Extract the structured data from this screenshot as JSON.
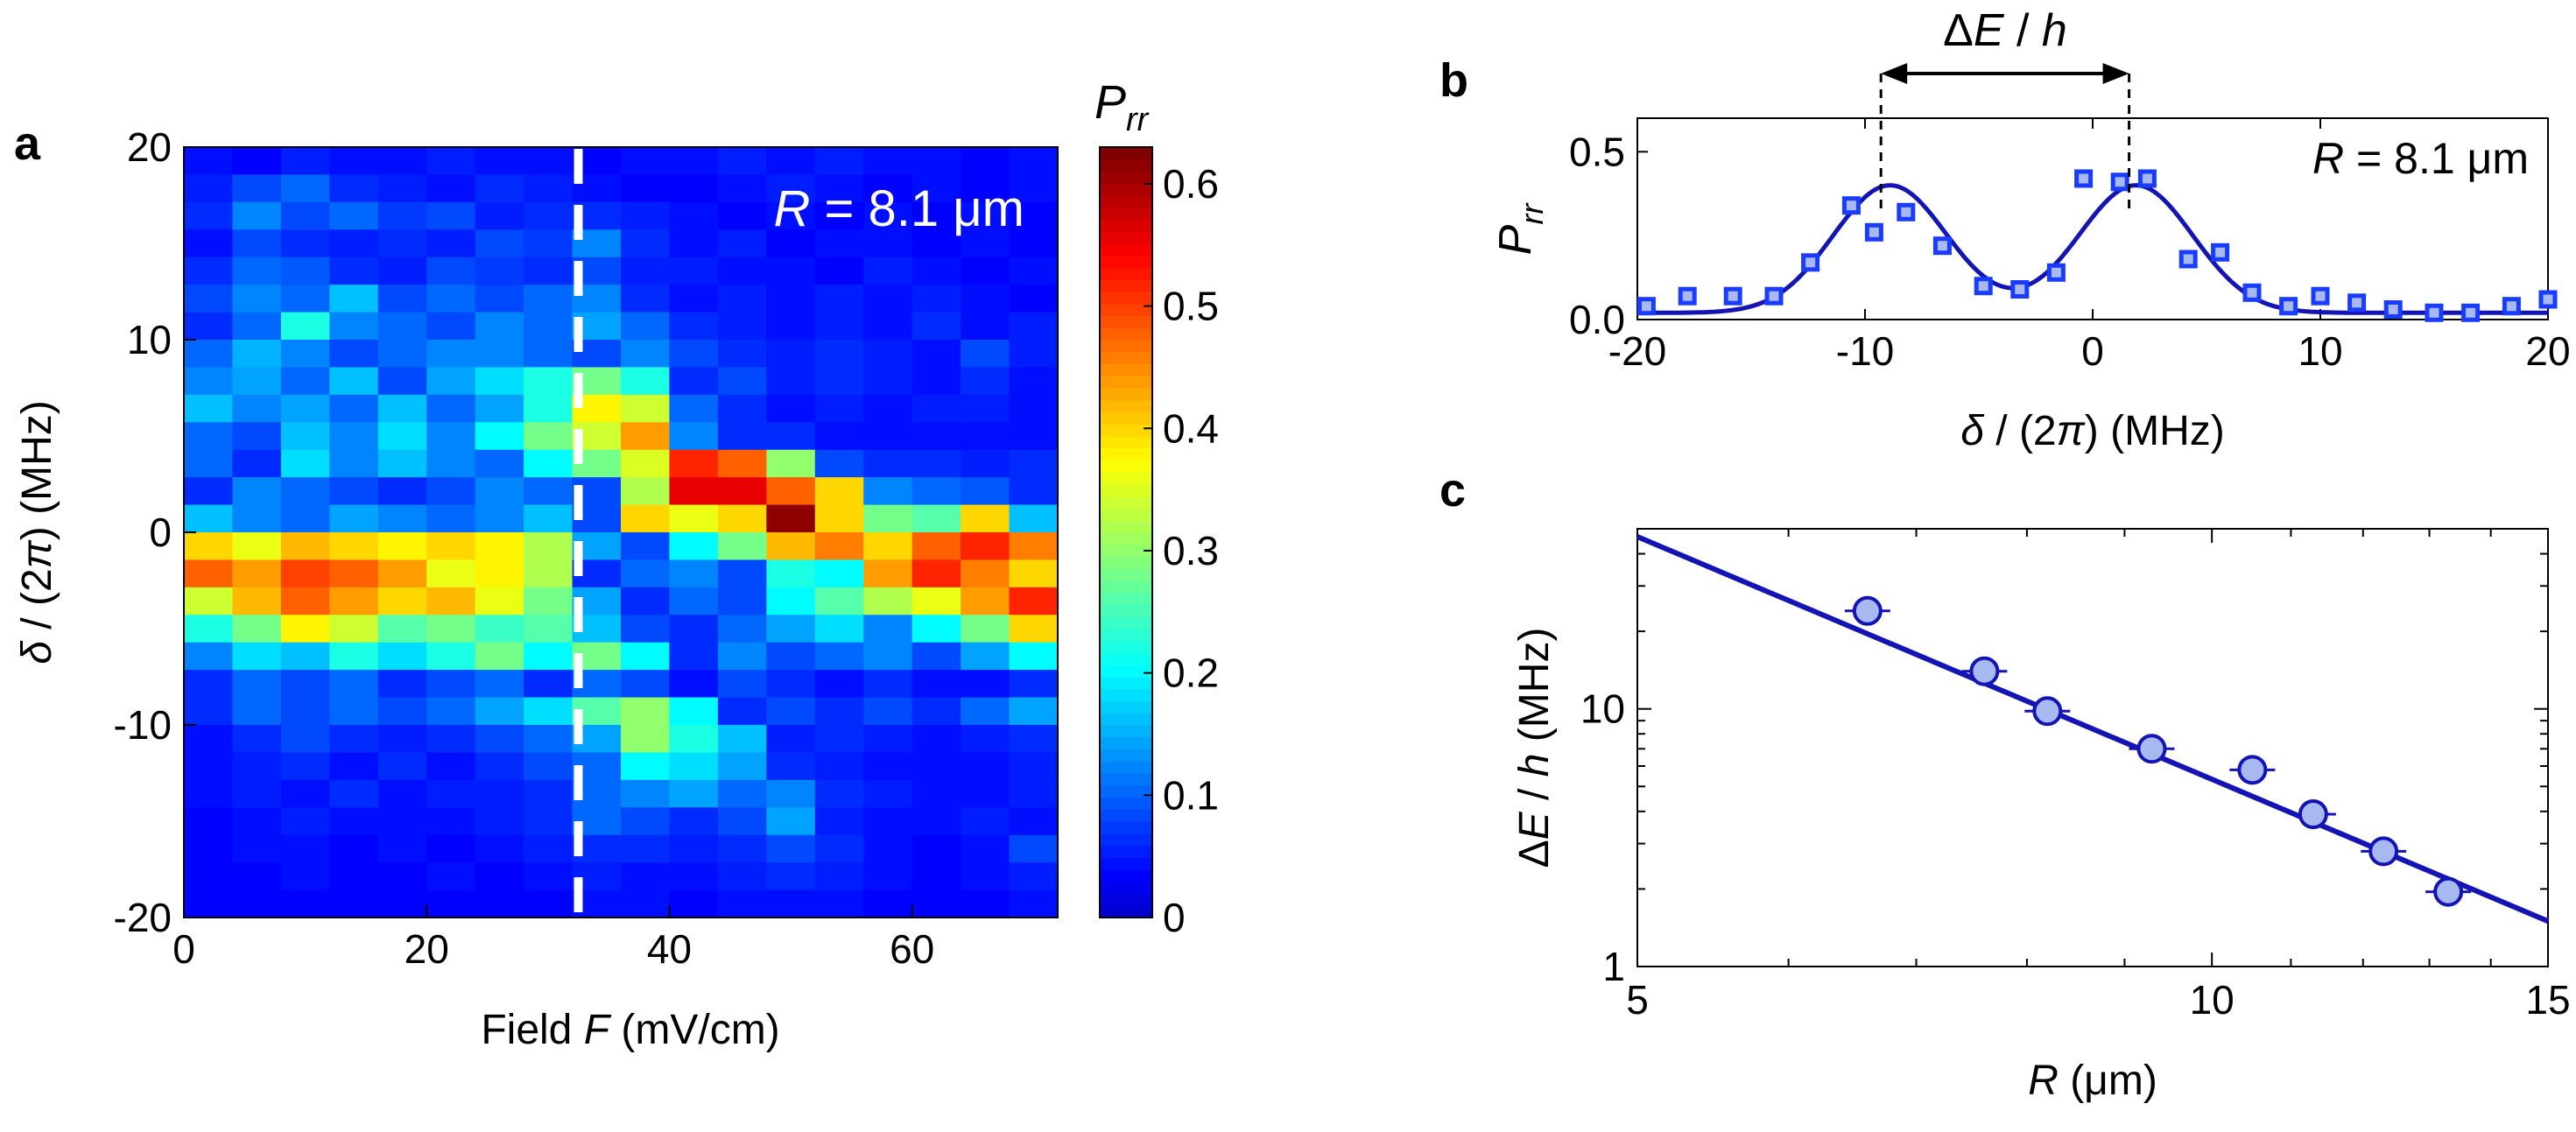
{
  "chart_data": [
    {
      "id": "a",
      "panel_label": "a",
      "type": "heatmap",
      "title": "",
      "xlabel": "Field F (mV/cm)",
      "xlabel_parts": [
        "Field ",
        "F",
        " (mV/cm)"
      ],
      "ylabel": "δ / (2π) (MHz)",
      "ylabel_parts": [
        "δ",
        " / (2",
        "π",
        ") (MHz)"
      ],
      "xlim": [
        0,
        72
      ],
      "ylim": [
        -20,
        20
      ],
      "x_ticks": [
        0,
        20,
        40,
        60
      ],
      "x_tick_labels": [
        "0",
        "20",
        "40",
        "60"
      ],
      "y_ticks": [
        -20,
        -10,
        0,
        10,
        20
      ],
      "y_tick_labels": [
        "-20",
        "-10",
        "0",
        "10",
        "20"
      ],
      "n_cols": 18,
      "n_rows": 20,
      "row_order": "top-to-bottom (row 0 = +20 MHz)",
      "values": [
        [
          0.04,
          0.03,
          0.05,
          0.04,
          0.04,
          0.05,
          0.04,
          0.04,
          0.03,
          0.04,
          0.04,
          0.05,
          0.04,
          0.05,
          0.04,
          0.04,
          0.03,
          0.04
        ],
        [
          0.05,
          0.08,
          0.1,
          0.06,
          0.05,
          0.04,
          0.06,
          0.05,
          0.04,
          0.03,
          0.03,
          0.04,
          0.05,
          0.04,
          0.03,
          0.04,
          0.03,
          0.04
        ],
        [
          0.06,
          0.12,
          0.08,
          0.1,
          0.07,
          0.08,
          0.05,
          0.06,
          0.06,
          0.05,
          0.04,
          0.03,
          0.04,
          0.03,
          0.04,
          0.03,
          0.04,
          0.03
        ],
        [
          0.04,
          0.08,
          0.06,
          0.05,
          0.06,
          0.05,
          0.08,
          0.07,
          0.12,
          0.06,
          0.04,
          0.05,
          0.03,
          0.04,
          0.04,
          0.03,
          0.04,
          0.03
        ],
        [
          0.06,
          0.1,
          0.09,
          0.06,
          0.05,
          0.08,
          0.07,
          0.06,
          0.08,
          0.05,
          0.05,
          0.04,
          0.04,
          0.03,
          0.05,
          0.04,
          0.03,
          0.04
        ],
        [
          0.08,
          0.12,
          0.1,
          0.16,
          0.08,
          0.1,
          0.08,
          0.1,
          0.12,
          0.06,
          0.04,
          0.05,
          0.04,
          0.05,
          0.04,
          0.05,
          0.04,
          0.03
        ],
        [
          0.06,
          0.1,
          0.22,
          0.12,
          0.1,
          0.08,
          0.12,
          0.1,
          0.14,
          0.1,
          0.06,
          0.05,
          0.04,
          0.05,
          0.04,
          0.06,
          0.04,
          0.05
        ],
        [
          0.1,
          0.15,
          0.12,
          0.08,
          0.1,
          0.12,
          0.12,
          0.1,
          0.08,
          0.12,
          0.08,
          0.06,
          0.05,
          0.06,
          0.05,
          0.04,
          0.08,
          0.05
        ],
        [
          0.12,
          0.14,
          0.1,
          0.16,
          0.08,
          0.14,
          0.18,
          0.22,
          0.28,
          0.22,
          0.06,
          0.08,
          0.05,
          0.06,
          0.05,
          0.04,
          0.06,
          0.04
        ],
        [
          0.16,
          0.12,
          0.14,
          0.1,
          0.16,
          0.1,
          0.14,
          0.22,
          0.38,
          0.34,
          0.1,
          0.06,
          0.04,
          0.05,
          0.04,
          0.05,
          0.05,
          0.04
        ],
        [
          0.1,
          0.08,
          0.16,
          0.12,
          0.18,
          0.12,
          0.2,
          0.28,
          0.34,
          0.44,
          0.12,
          0.06,
          0.06,
          0.04,
          0.04,
          0.04,
          0.04,
          0.04
        ],
        [
          0.1,
          0.06,
          0.18,
          0.12,
          0.16,
          0.12,
          0.1,
          0.2,
          0.28,
          0.35,
          0.52,
          0.48,
          0.3,
          0.08,
          0.06,
          0.06,
          0.05,
          0.06
        ],
        [
          0.06,
          0.12,
          0.1,
          0.08,
          0.06,
          0.08,
          0.12,
          0.1,
          0.08,
          0.32,
          0.56,
          0.56,
          0.48,
          0.4,
          0.12,
          0.1,
          0.09,
          0.06
        ],
        [
          0.16,
          0.12,
          0.1,
          0.14,
          0.12,
          0.1,
          0.12,
          0.16,
          0.08,
          0.4,
          0.36,
          0.4,
          0.62,
          0.4,
          0.28,
          0.26,
          0.4,
          0.16
        ],
        [
          0.4,
          0.36,
          0.42,
          0.4,
          0.38,
          0.4,
          0.38,
          0.32,
          0.14,
          0.08,
          0.2,
          0.28,
          0.42,
          0.46,
          0.4,
          0.48,
          0.52,
          0.46
        ],
        [
          0.48,
          0.44,
          0.5,
          0.48,
          0.44,
          0.36,
          0.38,
          0.32,
          0.06,
          0.1,
          0.12,
          0.08,
          0.22,
          0.2,
          0.44,
          0.52,
          0.46,
          0.4
        ],
        [
          0.34,
          0.42,
          0.48,
          0.44,
          0.4,
          0.42,
          0.36,
          0.28,
          0.14,
          0.06,
          0.1,
          0.08,
          0.2,
          0.26,
          0.32,
          0.36,
          0.44,
          0.52
        ],
        [
          0.22,
          0.28,
          0.38,
          0.34,
          0.26,
          0.28,
          0.24,
          0.26,
          0.16,
          0.08,
          0.06,
          0.1,
          0.14,
          0.18,
          0.12,
          0.2,
          0.28,
          0.4
        ],
        [
          0.12,
          0.18,
          0.16,
          0.22,
          0.18,
          0.22,
          0.28,
          0.2,
          0.28,
          0.2,
          0.06,
          0.12,
          0.08,
          0.1,
          0.12,
          0.08,
          0.14,
          0.2
        ],
        [
          0.06,
          0.1,
          0.08,
          0.1,
          0.06,
          0.08,
          0.1,
          0.06,
          0.1,
          0.08,
          0.04,
          0.08,
          0.06,
          0.04,
          0.06,
          0.04,
          0.04,
          0.06
        ]
      ],
      "rows_extended_note": "the 20 listed rows cover +20 to 0 region; lower half continues below",
      "values_lower": [
        [
          0.06,
          0.1,
          0.08,
          0.1,
          0.08,
          0.1,
          0.14,
          0.18,
          0.26,
          0.3,
          0.2,
          0.06,
          0.08,
          0.06,
          0.08,
          0.06,
          0.1,
          0.14
        ],
        [
          0.04,
          0.06,
          0.08,
          0.06,
          0.05,
          0.06,
          0.08,
          0.1,
          0.14,
          0.3,
          0.22,
          0.16,
          0.05,
          0.06,
          0.05,
          0.04,
          0.05,
          0.06
        ],
        [
          0.04,
          0.05,
          0.06,
          0.04,
          0.06,
          0.04,
          0.06,
          0.08,
          0.1,
          0.2,
          0.18,
          0.14,
          0.06,
          0.05,
          0.04,
          0.04,
          0.04,
          0.05
        ],
        [
          0.04,
          0.05,
          0.04,
          0.06,
          0.04,
          0.05,
          0.05,
          0.06,
          0.1,
          0.12,
          0.14,
          0.1,
          0.12,
          0.06,
          0.05,
          0.04,
          0.04,
          0.05
        ],
        [
          0.03,
          0.04,
          0.05,
          0.04,
          0.04,
          0.04,
          0.05,
          0.06,
          0.1,
          0.08,
          0.06,
          0.08,
          0.14,
          0.05,
          0.04,
          0.04,
          0.05,
          0.04
        ],
        [
          0.03,
          0.04,
          0.04,
          0.03,
          0.04,
          0.03,
          0.04,
          0.05,
          0.06,
          0.06,
          0.05,
          0.06,
          0.08,
          0.06,
          0.04,
          0.03,
          0.04,
          0.08
        ],
        [
          0.03,
          0.03,
          0.04,
          0.03,
          0.03,
          0.04,
          0.03,
          0.04,
          0.05,
          0.04,
          0.04,
          0.05,
          0.06,
          0.05,
          0.04,
          0.03,
          0.04,
          0.05
        ],
        [
          0.03,
          0.03,
          0.03,
          0.03,
          0.03,
          0.03,
          0.03,
          0.03,
          0.04,
          0.04,
          0.03,
          0.04,
          0.04,
          0.04,
          0.03,
          0.03,
          0.03,
          0.04
        ]
      ],
      "dashed_line_x": 32.5,
      "dashed_line_color": "#ffffff",
      "annotation_parts": [
        "R",
        " = 8.1 μm"
      ],
      "colorbar": {
        "label_main": "P",
        "label_sub": "rr",
        "min": 0,
        "max": 0.63,
        "ticks": [
          0,
          0.1,
          0.2,
          0.3,
          0.4,
          0.5,
          0.6
        ],
        "tick_labels": [
          "0",
          "0.1",
          "0.2",
          "0.3",
          "0.4",
          "0.5",
          "0.6"
        ],
        "colormap": "jet"
      }
    },
    {
      "id": "b",
      "panel_label": "b",
      "type": "scatter",
      "title": "",
      "xlabel_parts": [
        "δ",
        " / (2",
        "π",
        ")  (MHz)"
      ],
      "ylabel_main": "P",
      "ylabel_sub": "rr",
      "xlim": [
        -20,
        20
      ],
      "ylim": [
        0,
        0.6
      ],
      "x_ticks": [
        -20,
        -10,
        0,
        10,
        20
      ],
      "x_tick_labels": [
        "-20",
        "-10",
        "0",
        "10",
        "20"
      ],
      "y_ticks": [
        0,
        0.5
      ],
      "y_tick_labels": [
        "0.0",
        "0.5"
      ],
      "series": [
        {
          "name": "data",
          "marker": "square",
          "color": "#1a3cff",
          "x": [
            -19.6,
            -17.8,
            -15.8,
            -14.0,
            -12.4,
            -10.6,
            -9.6,
            -8.2,
            -6.6,
            -4.8,
            -3.2,
            -1.6,
            -0.4,
            1.2,
            2.4,
            4.2,
            5.6,
            7.0,
            8.6,
            10.0,
            11.6,
            13.2,
            15.0,
            16.6,
            18.4,
            20.0
          ],
          "y": [
            0.04,
            0.07,
            0.07,
            0.07,
            0.17,
            0.34,
            0.26,
            0.32,
            0.22,
            0.1,
            0.09,
            0.14,
            0.42,
            0.41,
            0.42,
            0.18,
            0.2,
            0.08,
            0.04,
            0.07,
            0.05,
            0.03,
            0.02,
            0.02,
            0.04,
            0.06
          ]
        },
        {
          "name": "fit",
          "type": "line",
          "color": "#1414b4",
          "model": "double gaussian",
          "peak_centers": [
            -8.9,
            1.9
          ],
          "peak_amplitude": 0.38,
          "sigma": 2.5,
          "offset": 0.02
        }
      ],
      "arrow_label_parts": [
        "Δ",
        "E",
        " / ",
        "h"
      ],
      "arrow_from_x": -9.3,
      "arrow_to_x": 1.6,
      "annotation_parts": [
        "R",
        " = 8.1 μm"
      ]
    },
    {
      "id": "c",
      "panel_label": "c",
      "type": "scatter",
      "title": "",
      "xlabel_parts": [
        "R",
        " (μm)"
      ],
      "ylabel_parts": [
        "Δ",
        "E",
        " / ",
        "h",
        " (MHz)"
      ],
      "x_scale": "log",
      "y_scale": "log",
      "xlim": [
        5,
        15
      ],
      "ylim": [
        1,
        50
      ],
      "x_ticks": [
        5,
        10,
        15
      ],
      "x_tick_labels": [
        "5",
        "10",
        "15"
      ],
      "y_ticks": [
        1,
        10
      ],
      "y_tick_labels": [
        "1",
        "10"
      ],
      "series": [
        {
          "name": "data",
          "marker": "circle",
          "fill": "#a8b8f0",
          "edge": "#1414b4",
          "x": [
            6.6,
            7.6,
            8.2,
            9.3,
            10.5,
            11.3,
            12.3,
            13.3
          ],
          "y": [
            24,
            14,
            9.8,
            7.0,
            5.8,
            3.9,
            2.8,
            1.95
          ]
        },
        {
          "name": "fit",
          "type": "line",
          "color": "#1414b4",
          "points": [
            [
              5.0,
              46.6
            ],
            [
              15.0,
              1.5
            ]
          ]
        }
      ]
    }
  ]
}
